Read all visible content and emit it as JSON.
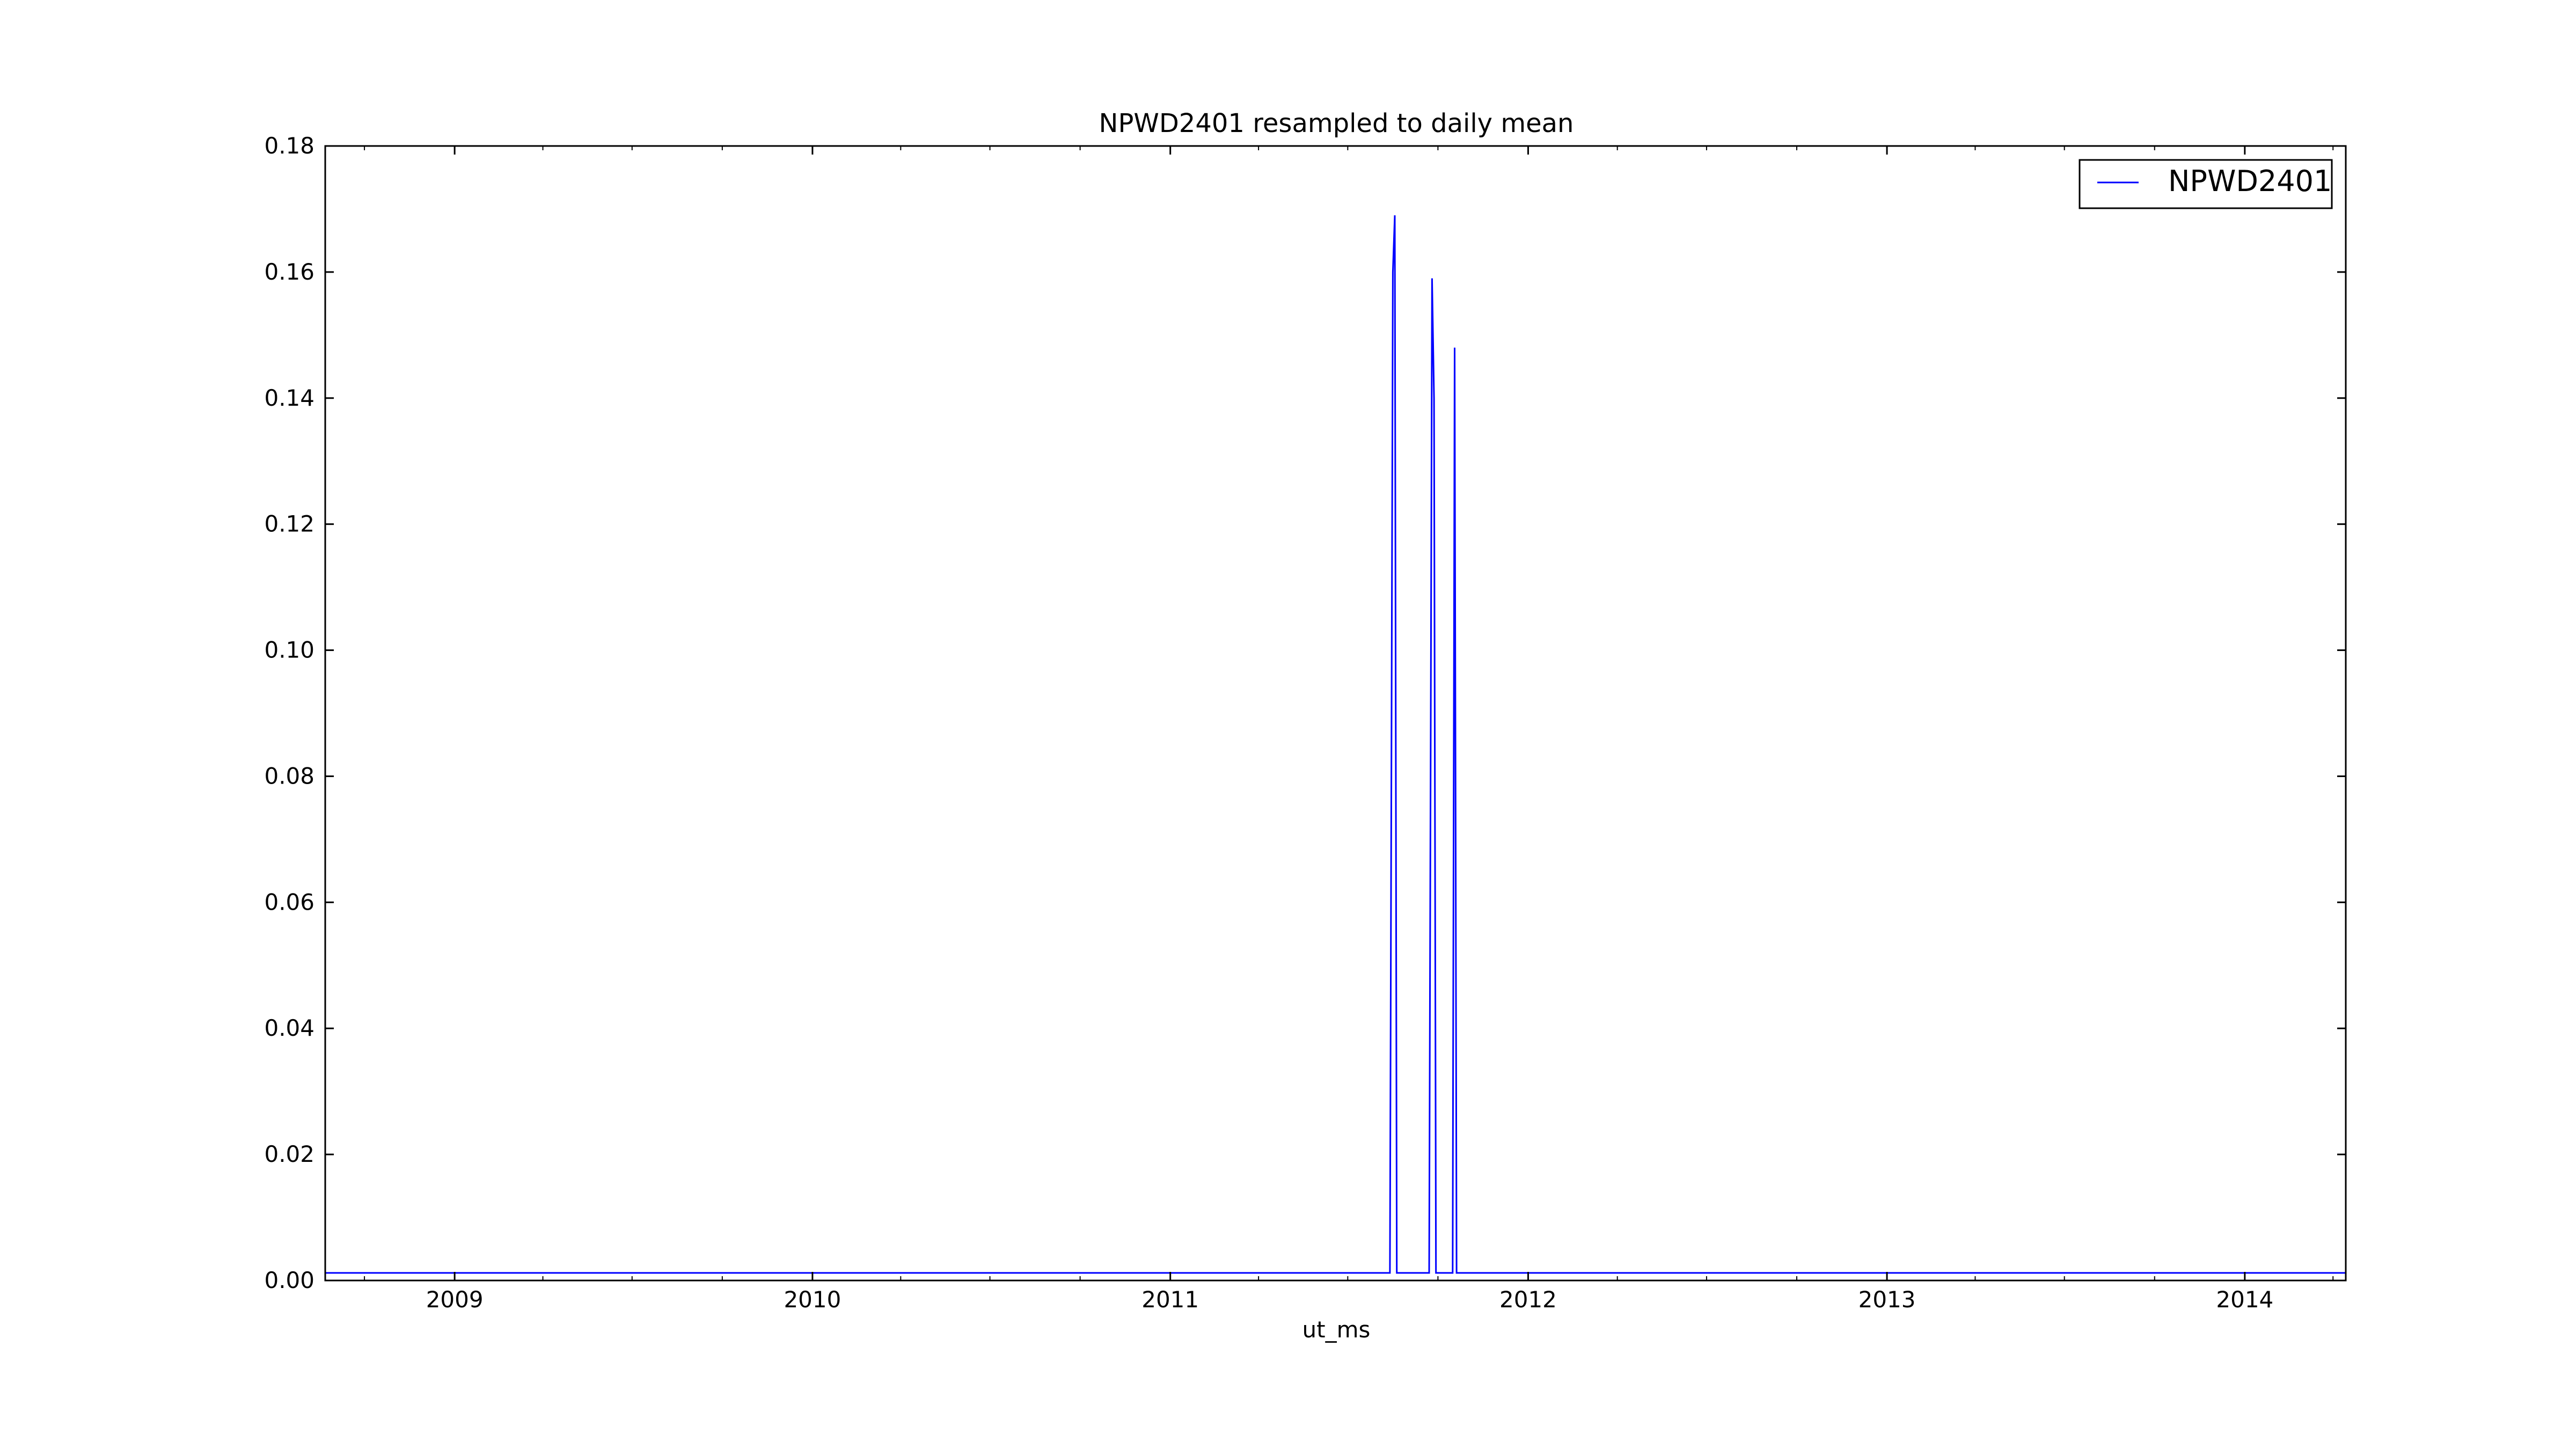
{
  "chart_data": {
    "type": "line",
    "title": "NPWD2401 resampled to daily mean",
    "xlabel": "ut_ms",
    "ylabel": "",
    "xlim": [
      "2008-08-22",
      "2014-04-14"
    ],
    "ylim": [
      0.0,
      0.18
    ],
    "x_ticks": [
      "2009",
      "2010",
      "2011",
      "2012",
      "2013",
      "2014"
    ],
    "y_ticks": [
      "0.00",
      "0.02",
      "0.04",
      "0.06",
      "0.08",
      "0.10",
      "0.12",
      "0.14",
      "0.16",
      "0.18"
    ],
    "grid": false,
    "legend_position": "top-right",
    "series": [
      {
        "name": "NPWD2401",
        "color": "#0000ff",
        "points": [
          [
            "2008-08-22",
            0.0012
          ],
          [
            "2011-08-13",
            0.0012
          ],
          [
            "2011-08-16",
            0.16
          ],
          [
            "2011-08-18",
            0.169
          ],
          [
            "2011-08-20",
            0.0012
          ],
          [
            "2011-09-22",
            0.0012
          ],
          [
            "2011-09-25",
            0.159
          ],
          [
            "2011-09-27",
            0.14
          ],
          [
            "2011-09-29",
            0.0012
          ],
          [
            "2011-10-16",
            0.0012
          ],
          [
            "2011-10-18",
            0.148
          ],
          [
            "2011-10-20",
            0.0012
          ],
          [
            "2014-04-14",
            0.0012
          ]
        ]
      }
    ]
  }
}
